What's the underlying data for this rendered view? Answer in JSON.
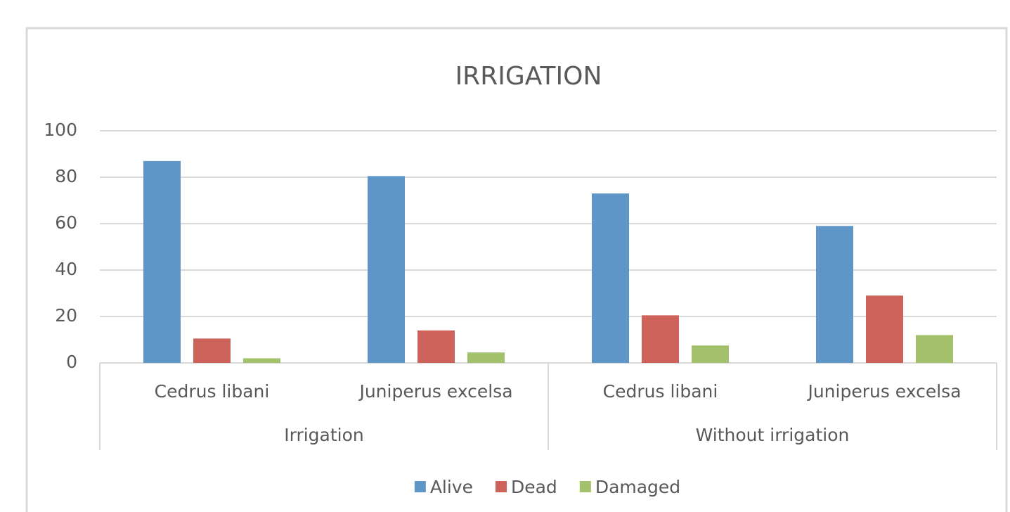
{
  "chart_data": {
    "type": "bar",
    "title": "IRRIGATION",
    "categories": [
      "Cedrus libani",
      "Juniperus excelsa",
      "Cedrus libani",
      "Juniperus excelsa"
    ],
    "groups": [
      "Irrigation",
      "Without irrigation"
    ],
    "series": [
      {
        "name": "Alive",
        "color": "#5f96c8",
        "values": [
          87,
          80.5,
          73,
          59
        ]
      },
      {
        "name": "Dead",
        "color": "#cd625a",
        "values": [
          10.5,
          14,
          20.5,
          29
        ]
      },
      {
        "name": "Damaged",
        "color": "#a3c16b",
        "values": [
          2,
          4.5,
          7.5,
          12
        ]
      }
    ],
    "ylim": [
      0,
      100
    ],
    "yticks": [
      0,
      20,
      40,
      60,
      80,
      100
    ],
    "grid": true,
    "legend": "bottom"
  }
}
